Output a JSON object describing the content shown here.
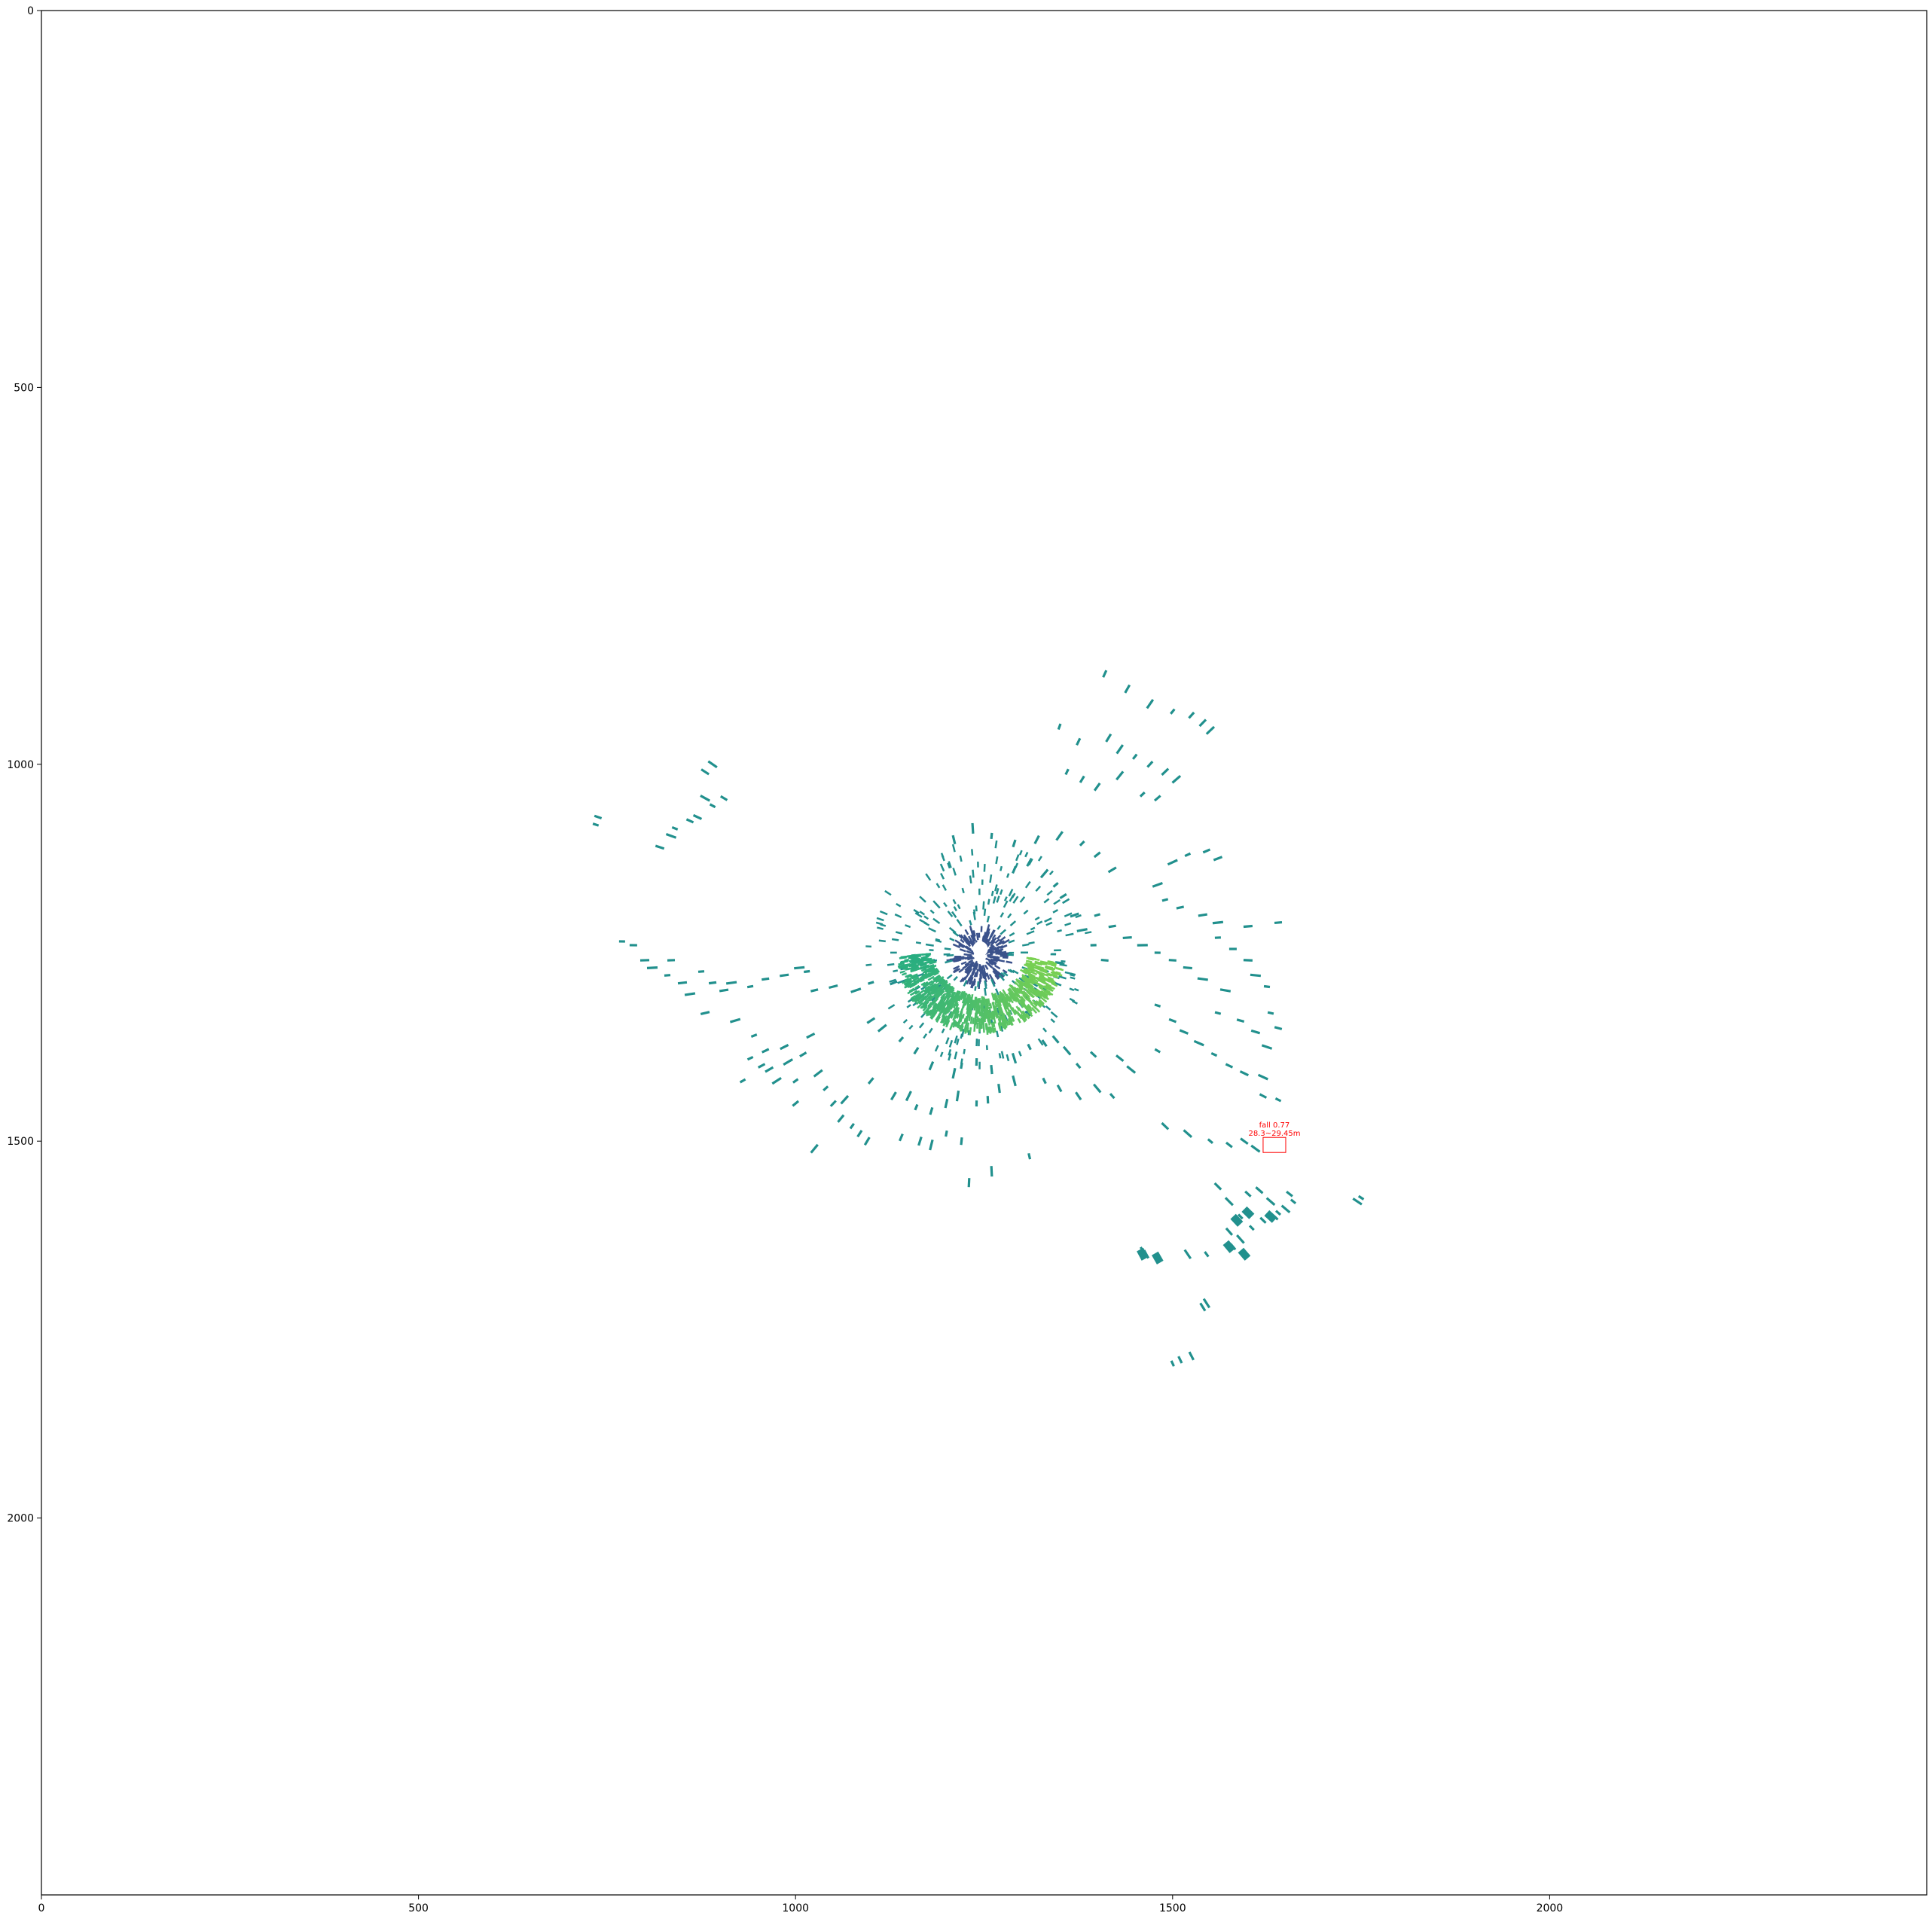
{
  "chart_data": {
    "type": "scatter",
    "title": "",
    "xlabel": "",
    "ylabel": "",
    "xlim": [
      0,
      2500
    ],
    "ylim": [
      2500,
      0
    ],
    "y_inverted": true,
    "grid": false,
    "legend": "none",
    "x_ticks": [
      "0",
      "500",
      "1000",
      "1500",
      "2000"
    ],
    "x_tick_values": [
      0,
      500,
      1000,
      1500,
      2000
    ],
    "y_ticks": [
      "0",
      "500",
      "1000",
      "1500",
      "2000"
    ],
    "y_tick_values": [
      0,
      500,
      1000,
      1500,
      2000
    ],
    "colormap": "viridis",
    "colors": {
      "base_points": "#21908d",
      "dark_points": "#3b528b",
      "mid_points": "#27ad81",
      "bright_points": "#7ad151",
      "detection_box": "#ff0000"
    },
    "center": [
      1245,
      1245
    ],
    "hole_radius": 10,
    "clusters": [
      {
        "name": "near-ring",
        "cx": 1245,
        "cy": 1255,
        "r_min": 12,
        "r_max": 40,
        "angle_deg": [
          0,
          360
        ],
        "count": 220,
        "color": "dark_points"
      },
      {
        "name": "inner-burst",
        "cx": 1245,
        "cy": 1250,
        "r_min": 40,
        "r_max": 150,
        "angle_deg": [
          0,
          360
        ],
        "count": 260,
        "color": "base_points"
      },
      {
        "name": "arc-band",
        "cx": 1245,
        "cy": 1245,
        "r_min": 65,
        "r_max": 110,
        "angle_deg": [
          10,
          175
        ],
        "count": 900,
        "color": "gradient"
      }
    ],
    "scattered_points": [
      [
        735,
        1080
      ],
      [
        738,
        1070
      ],
      [
        820,
        1110
      ],
      [
        835,
        1095
      ],
      [
        840,
        1085
      ],
      [
        860,
        1075
      ],
      [
        870,
        1070
      ],
      [
        880,
        1045
      ],
      [
        890,
        1055
      ],
      [
        905,
        1045
      ],
      [
        880,
        1010
      ],
      [
        890,
        1000
      ],
      [
        770,
        1235
      ],
      [
        785,
        1240
      ],
      [
        800,
        1260
      ],
      [
        810,
        1270
      ],
      [
        830,
        1280
      ],
      [
        835,
        1260
      ],
      [
        850,
        1290
      ],
      [
        860,
        1305
      ],
      [
        875,
        1275
      ],
      [
        890,
        1290
      ],
      [
        905,
        1300
      ],
      [
        915,
        1290
      ],
      [
        940,
        1295
      ],
      [
        960,
        1285
      ],
      [
        985,
        1280
      ],
      [
        1005,
        1270
      ],
      [
        1015,
        1275
      ],
      [
        1025,
        1300
      ],
      [
        1050,
        1295
      ],
      [
        1080,
        1300
      ],
      [
        1100,
        1290
      ],
      [
        1130,
        1290
      ],
      [
        880,
        1330
      ],
      [
        920,
        1340
      ],
      [
        945,
        1360
      ],
      [
        960,
        1380
      ],
      [
        985,
        1375
      ],
      [
        990,
        1395
      ],
      [
        1000,
        1420
      ],
      [
        1010,
        1385
      ],
      [
        1020,
        1360
      ],
      [
        1030,
        1410
      ],
      [
        1040,
        1430
      ],
      [
        1050,
        1450
      ],
      [
        1060,
        1470
      ],
      [
        1065,
        1445
      ],
      [
        1075,
        1480
      ],
      [
        1085,
        1490
      ],
      [
        1095,
        1500
      ],
      [
        1025,
        1510
      ],
      [
        940,
        1390
      ],
      [
        955,
        1400
      ],
      [
        965,
        1405
      ],
      [
        975,
        1420
      ],
      [
        930,
        1420
      ],
      [
        1000,
        1450
      ],
      [
        1100,
        1340
      ],
      [
        1115,
        1350
      ],
      [
        1140,
        1365
      ],
      [
        1160,
        1380
      ],
      [
        1180,
        1400
      ],
      [
        1210,
        1410
      ],
      [
        1220,
        1400
      ],
      [
        1240,
        1395
      ],
      [
        1260,
        1405
      ],
      [
        1290,
        1390
      ],
      [
        1310,
        1375
      ],
      [
        1330,
        1370
      ],
      [
        1345,
        1365
      ],
      [
        1360,
        1380
      ],
      [
        1375,
        1400
      ],
      [
        1395,
        1385
      ],
      [
        1430,
        1390
      ],
      [
        1445,
        1405
      ],
      [
        1480,
        1380
      ],
      [
        1100,
        1420
      ],
      [
        1130,
        1440
      ],
      [
        1150,
        1440
      ],
      [
        1160,
        1455
      ],
      [
        1180,
        1460
      ],
      [
        1200,
        1450
      ],
      [
        1215,
        1440
      ],
      [
        1240,
        1450
      ],
      [
        1255,
        1445
      ],
      [
        1270,
        1430
      ],
      [
        1290,
        1420
      ],
      [
        1330,
        1420
      ],
      [
        1350,
        1430
      ],
      [
        1375,
        1440
      ],
      [
        1400,
        1430
      ],
      [
        1420,
        1440
      ],
      [
        1140,
        1495
      ],
      [
        1165,
        1500
      ],
      [
        1180,
        1505
      ],
      [
        1200,
        1490
      ],
      [
        1220,
        1500
      ],
      [
        1230,
        1555
      ],
      [
        1260,
        1540
      ],
      [
        1310,
        1520
      ],
      [
        1410,
        880
      ],
      [
        1440,
        900
      ],
      [
        1470,
        920
      ],
      [
        1500,
        930
      ],
      [
        1525,
        935
      ],
      [
        1540,
        945
      ],
      [
        1550,
        955
      ],
      [
        1350,
        950
      ],
      [
        1375,
        970
      ],
      [
        1415,
        965
      ],
      [
        1430,
        980
      ],
      [
        1450,
        990
      ],
      [
        1470,
        1000
      ],
      [
        1490,
        1010
      ],
      [
        1505,
        1020
      ],
      [
        1360,
        1010
      ],
      [
        1380,
        1020
      ],
      [
        1400,
        1030
      ],
      [
        1430,
        1015
      ],
      [
        1460,
        1040
      ],
      [
        1480,
        1045
      ],
      [
        1210,
        1100
      ],
      [
        1235,
        1085
      ],
      [
        1260,
        1095
      ],
      [
        1290,
        1105
      ],
      [
        1320,
        1100
      ],
      [
        1350,
        1095
      ],
      [
        1380,
        1105
      ],
      [
        1400,
        1120
      ],
      [
        1420,
        1140
      ],
      [
        1500,
        1130
      ],
      [
        1520,
        1120
      ],
      [
        1545,
        1115
      ],
      [
        1560,
        1125
      ],
      [
        1480,
        1160
      ],
      [
        1490,
        1180
      ],
      [
        1510,
        1190
      ],
      [
        1540,
        1200
      ],
      [
        1560,
        1210
      ],
      [
        1400,
        1200
      ],
      [
        1420,
        1215
      ],
      [
        1440,
        1230
      ],
      [
        1460,
        1240
      ],
      [
        1480,
        1250
      ],
      [
        1500,
        1260
      ],
      [
        1520,
        1270
      ],
      [
        1540,
        1285
      ],
      [
        1560,
        1230
      ],
      [
        1580,
        1245
      ],
      [
        1600,
        1260
      ],
      [
        1610,
        1280
      ],
      [
        1625,
        1295
      ],
      [
        1640,
        1210
      ],
      [
        1600,
        1215
      ],
      [
        1570,
        1300
      ],
      [
        1480,
        1320
      ],
      [
        1500,
        1340
      ],
      [
        1515,
        1355
      ],
      [
        1535,
        1370
      ],
      [
        1555,
        1385
      ],
      [
        1575,
        1400
      ],
      [
        1595,
        1410
      ],
      [
        1620,
        1415
      ],
      [
        1560,
        1330
      ],
      [
        1590,
        1340
      ],
      [
        1610,
        1355
      ],
      [
        1625,
        1375
      ],
      [
        1630,
        1330
      ],
      [
        1640,
        1350
      ],
      [
        1490,
        1480
      ],
      [
        1520,
        1490
      ],
      [
        1550,
        1500
      ],
      [
        1575,
        1505
      ],
      [
        1595,
        1500
      ],
      [
        1610,
        1510
      ],
      [
        1640,
        1445
      ],
      [
        1620,
        1440
      ],
      [
        1560,
        1560
      ],
      [
        1575,
        1580
      ],
      [
        1590,
        1600
      ],
      [
        1600,
        1570
      ],
      [
        1615,
        1565
      ],
      [
        1630,
        1580
      ],
      [
        1640,
        1595
      ],
      [
        1655,
        1570
      ],
      [
        1575,
        1620
      ],
      [
        1590,
        1630
      ],
      [
        1605,
        1615
      ],
      [
        1620,
        1605
      ],
      [
        1635,
        1600
      ],
      [
        1650,
        1590
      ],
      [
        1660,
        1580
      ],
      [
        1460,
        1645
      ],
      [
        1465,
        1650
      ],
      [
        1520,
        1650
      ],
      [
        1545,
        1650
      ],
      [
        1580,
        1640
      ],
      [
        1540,
        1720
      ],
      [
        1545,
        1715
      ],
      [
        1500,
        1795
      ],
      [
        1510,
        1790
      ],
      [
        1525,
        1785
      ],
      [
        1745,
        1580
      ],
      [
        1750,
        1575
      ],
      [
        1290,
        1140
      ],
      [
        1310,
        1130
      ],
      [
        1330,
        1145
      ],
      [
        1345,
        1160
      ],
      [
        1355,
        1175
      ],
      [
        1370,
        1200
      ],
      [
        1380,
        1220
      ],
      [
        1395,
        1240
      ],
      [
        1410,
        1260
      ]
    ],
    "thick_marks": [
      [
        1460,
        1650
      ],
      [
        1480,
        1655
      ],
      [
        1585,
        1605
      ],
      [
        1600,
        1595
      ],
      [
        1630,
        1600
      ],
      [
        1575,
        1640
      ],
      [
        1595,
        1650
      ]
    ],
    "detections": [
      {
        "label": "fall  0.77",
        "range": "28.3~29.45m",
        "x_range": [
          1620,
          1650
        ],
        "y_range": [
          1495,
          1515
        ]
      }
    ]
  }
}
